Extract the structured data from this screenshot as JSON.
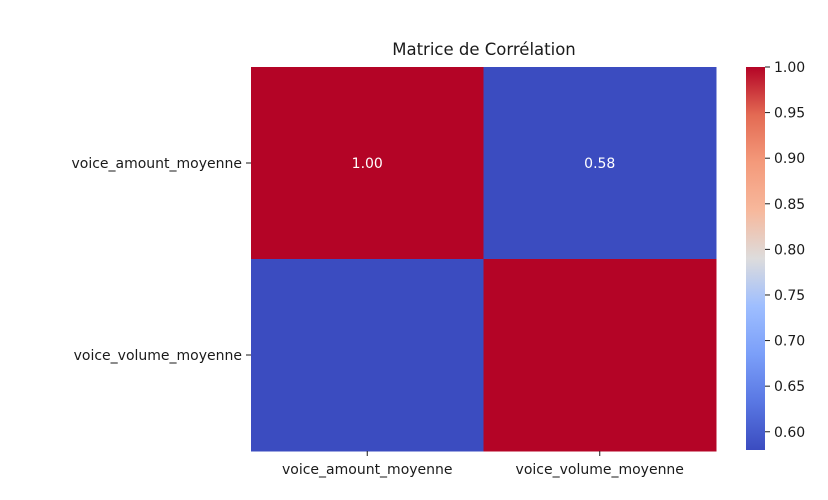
{
  "chart_data": {
    "type": "heatmap",
    "title": "Matrice de Corrélation",
    "xlabel": "",
    "ylabel": "",
    "x_categories": [
      "voice_amount_moyenne",
      "voice_volume_moyenne"
    ],
    "y_categories": [
      "voice_amount_moyenne",
      "voice_volume_moyenne"
    ],
    "values": [
      [
        1.0,
        0.58
      ],
      [
        0.58,
        1.0
      ]
    ],
    "annotations": [
      [
        "1.00",
        "0.58"
      ],
      [
        "",
        ""
      ]
    ],
    "colormap": "coolwarm",
    "color_range": [
      0.58,
      1.0
    ],
    "colorbar": {
      "ticks": [
        1.0,
        0.95,
        0.9,
        0.85,
        0.8,
        0.75,
        0.7,
        0.65,
        0.6
      ],
      "tick_labels": [
        "1.00",
        "0.95",
        "0.90",
        "0.85",
        "0.80",
        "0.75",
        "0.70",
        "0.65",
        "0.60"
      ],
      "placement": "right"
    },
    "grid": false
  }
}
